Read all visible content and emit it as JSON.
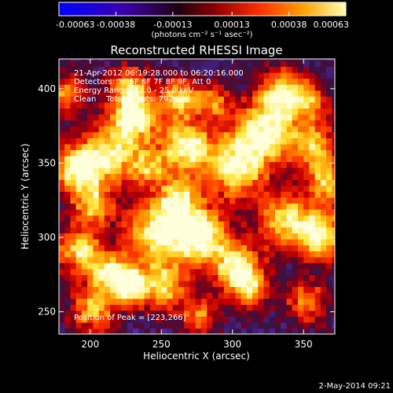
{
  "colorbar": {
    "tick_labels": [
      "-0.00063",
      "-0.00038",
      "-0.00013",
      "0.00013",
      "0.00038",
      "0.00063"
    ],
    "tick_values": [
      -0.00063,
      -0.00038,
      -0.00013,
      0.00013,
      0.00038,
      0.00063
    ],
    "range": [
      -0.00063,
      0.00063
    ],
    "units_label": "(photons cm⁻² s⁻¹ asec⁻²)"
  },
  "chart_data": {
    "type": "heatmap",
    "title": "Reconstructed RHESSI Image",
    "xlabel": "Heliocentric X (arcsec)",
    "ylabel": "Heliocentric Y (arcsec)",
    "xlim": [
      178,
      372
    ],
    "ylim": [
      235,
      420
    ],
    "x_ticks": [
      200,
      250,
      300,
      350
    ],
    "y_ticks": [
      250,
      300,
      350,
      400
    ],
    "annotations": [
      "21-Apr-2012 06:19:28.000 to 06:20:16.000",
      "Detectors: 3F 5F 6F 7F 8F 9F, Att 0",
      "Energy Range: 12.0 - 25.0 keV",
      "Clean    Total counts: 792.",
      "Position of Peak = [223,266]"
    ],
    "colormap": [
      "#0000ff",
      "#3300aa",
      "#1a0a3a",
      "#400060",
      "#a00000",
      "#ff3000",
      "#ff9000",
      "#ffff40",
      "#ffffff"
    ],
    "peak_position": [
      223,
      266
    ]
  },
  "footer": {
    "timestamp": "2-May-2014 09:21"
  }
}
